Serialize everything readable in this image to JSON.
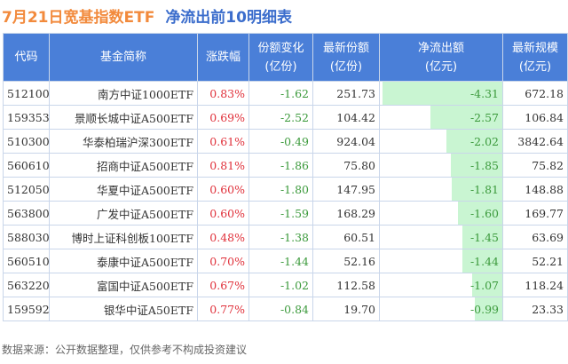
{
  "title": {
    "part1": "7月21日宽基指数ETF",
    "part2": "净流出前10明细表"
  },
  "colors": {
    "header": "#4a7fd8",
    "up": "#e0303a",
    "down": "#3c9a3c",
    "bar": "#c9f5d2"
  },
  "headers": [
    "代码",
    "基金简称",
    "涨跌幅",
    "份额变化\n(亿份)",
    "最新份额\n(亿份)",
    "净流出额\n(亿元)",
    "最新规模\n(亿元)"
  ],
  "rows": [
    [
      "512100",
      "南方中证1000ETF",
      "0.83%",
      "-1.62",
      "251.73",
      "-4.31",
      "672.18"
    ],
    [
      "159353",
      "景顺长城中证A500ETF",
      "0.69%",
      "-2.52",
      "104.42",
      "-2.57",
      "106.84"
    ],
    [
      "510300",
      "华泰柏瑞沪深300ETF",
      "0.61%",
      "-0.49",
      "924.04",
      "-2.02",
      "3842.64"
    ],
    [
      "560610",
      "招商中证A500ETF",
      "0.81%",
      "-1.86",
      "75.80",
      "-1.85",
      "75.82"
    ],
    [
      "512050",
      "华夏中证A500ETF",
      "0.60%",
      "-1.80",
      "147.95",
      "-1.81",
      "148.88"
    ],
    [
      "563800",
      "广发中证A500ETF",
      "0.60%",
      "-1.59",
      "168.29",
      "-1.60",
      "169.77"
    ],
    [
      "588030",
      "博时上证科创板100ETF",
      "0.48%",
      "-1.38",
      "60.51",
      "-1.45",
      "63.69"
    ],
    [
      "560510",
      "泰康中证A500ETF",
      "0.70%",
      "-1.44",
      "52.16",
      "-1.44",
      "52.21"
    ],
    [
      "563220",
      "富国中证A500ETF",
      "0.67%",
      "-1.02",
      "112.58",
      "-1.07",
      "118.24"
    ],
    [
      "159592",
      "银华中证A50ETF",
      "0.77%",
      "-0.84",
      "19.70",
      "-0.99",
      "23.33"
    ]
  ],
  "footer": "数据来源：公开数据整理，仅供参考不构成投资建议"
}
